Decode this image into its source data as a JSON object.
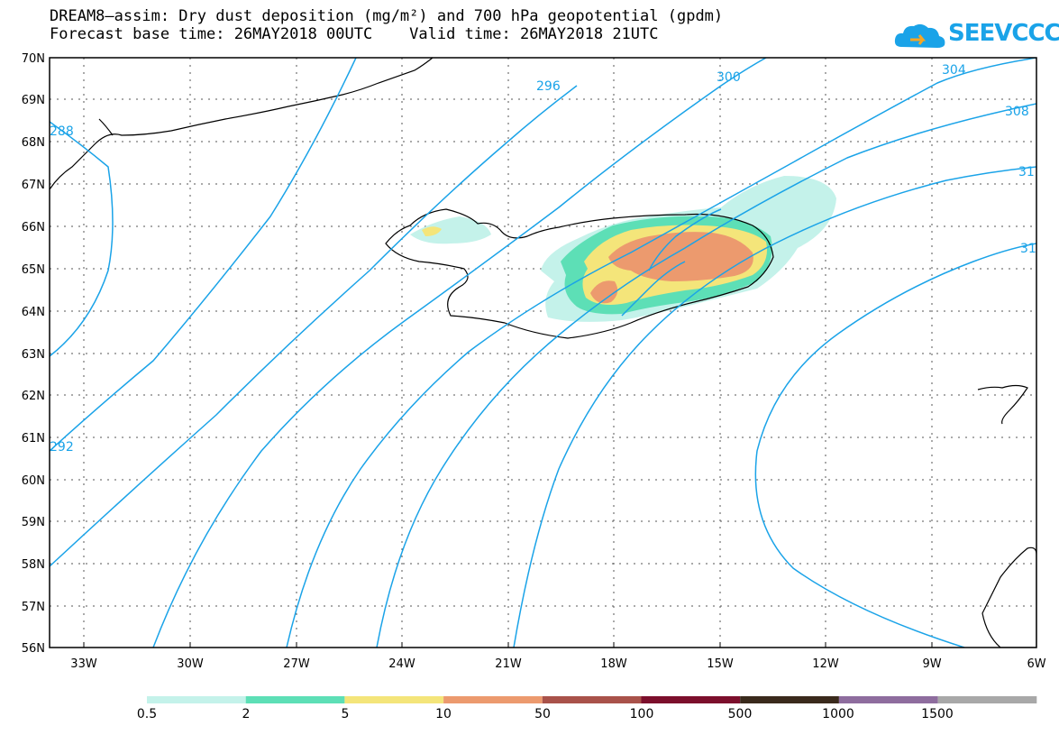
{
  "title_line1": "DREAM8–assim: Dry dust deposition (mg/m²) and 700 hPa geopotential (gpdm)",
  "title_line2": "Forecast base time: 26MAY2018 00UTC    Valid time: 26MAY2018 21UTC",
  "logo_text": "SEEVCCC",
  "lat_labels": [
    "70N",
    "69N",
    "68N",
    "67N",
    "66N",
    "65N",
    "64N",
    "63N",
    "62N",
    "61N",
    "60N",
    "59N",
    "58N",
    "57N",
    "56N"
  ],
  "lon_labels": [
    "33W",
    "30W",
    "27W",
    "24W",
    "21W",
    "18W",
    "15W",
    "12W",
    "9W",
    "6W"
  ],
  "contour_labels": [
    "288",
    "292",
    "296",
    "300",
    "304",
    "308",
    "31",
    "31"
  ],
  "legend": {
    "labels": [
      "0.5",
      "2",
      "5",
      "10",
      "50",
      "100",
      "500",
      "1000",
      "1500"
    ],
    "colors": [
      "#c4f2ea",
      "#5ddfb6",
      "#f4e57a",
      "#ec9a6e",
      "#a9524a",
      "#7c0f2c",
      "#3a2a1c",
      "#8e6d9e",
      "#a8a8a8"
    ]
  },
  "colors": {
    "contour": "#1aa3e8",
    "frame": "#000000"
  }
}
